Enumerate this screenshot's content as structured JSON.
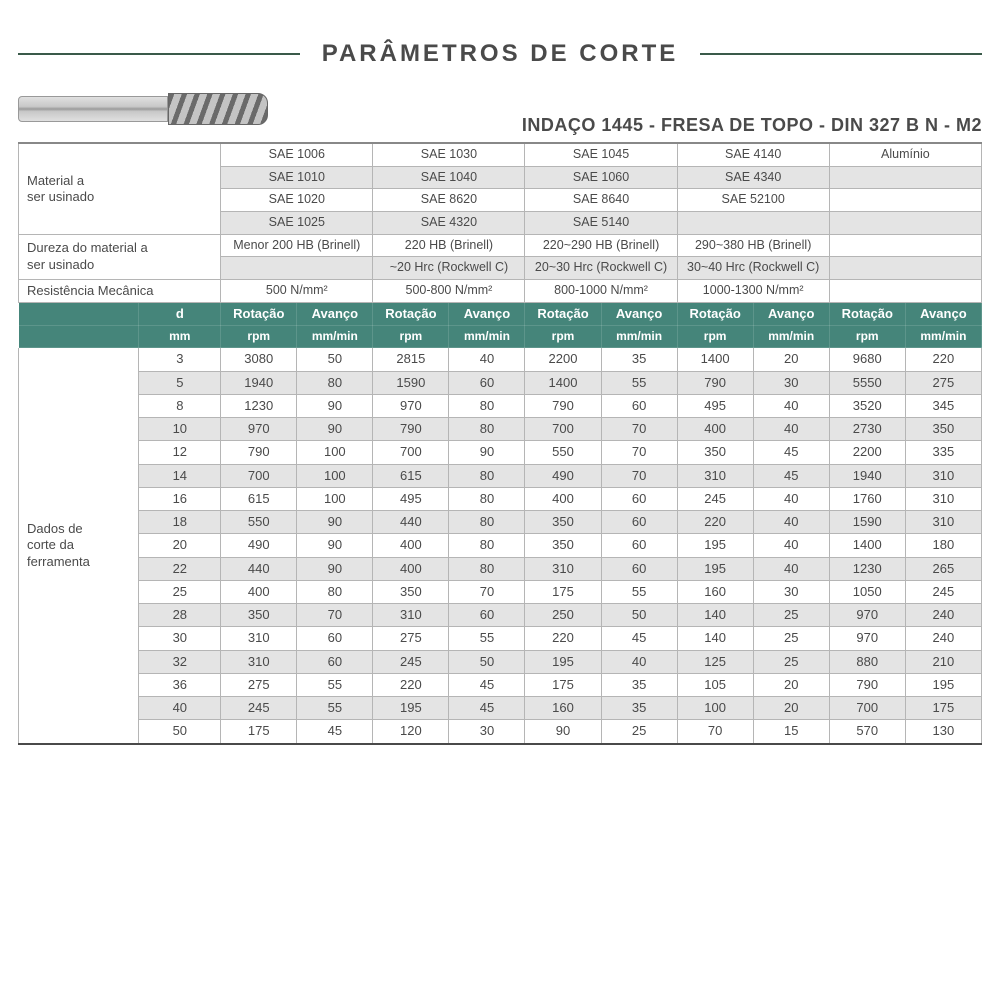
{
  "title": "PARÂMETROS DE CORTE",
  "subtitle": "INDAÇO 1445 - FRESA DE TOPO - DIN 327 B N - M2",
  "labels": {
    "material": "Material a\nser usinado",
    "hardness": "Dureza do material a\nser usinado",
    "resistance": "Resistência Mecânica",
    "tool_data": "Dados de\ncorte da\nferramenta",
    "d": "d",
    "mm": "mm",
    "rot": "Rotação",
    "rpm": "rpm",
    "adv": "Avanço",
    "mmmin": "mm/min"
  },
  "material_groups": [
    {
      "name": "g1",
      "rows": [
        "SAE 1006",
        "SAE 1010",
        "SAE 1020",
        "SAE 1025"
      ]
    },
    {
      "name": "g2",
      "rows": [
        "SAE 1030",
        "SAE 1040",
        "SAE 8620",
        "SAE 4320"
      ]
    },
    {
      "name": "g3",
      "rows": [
        "SAE 1045",
        "SAE 1060",
        "SAE 8640",
        "SAE 5140"
      ]
    },
    {
      "name": "g4",
      "rows": [
        "SAE 4140",
        "SAE 4340",
        "SAE 52100",
        ""
      ]
    },
    {
      "name": "g5",
      "rows": [
        "Alumínio",
        "",
        "",
        ""
      ]
    }
  ],
  "hardness_rows": [
    [
      "Menor 200 HB (Brinell)",
      "220 HB (Brinell)",
      "220~290 HB (Brinell)",
      "290~380 HB (Brinell)",
      ""
    ],
    [
      "",
      "~20 Hrc (Rockwell C)",
      "20~30 Hrc (Rockwell C)",
      "30~40 Hrc (Rockwell C)",
      ""
    ]
  ],
  "resistance_row": [
    "500 N/mm²",
    "500-800 N/mm²",
    "800-1000 N/mm²",
    "1000-1300 N/mm²",
    ""
  ],
  "diameters": [
    3,
    5,
    8,
    10,
    12,
    14,
    16,
    18,
    20,
    22,
    25,
    28,
    30,
    32,
    36,
    40,
    50
  ],
  "data_rows": [
    [
      3080,
      50,
      2815,
      40,
      2200,
      35,
      1400,
      20,
      9680,
      220
    ],
    [
      1940,
      80,
      1590,
      60,
      1400,
      55,
      790,
      30,
      5550,
      275
    ],
    [
      1230,
      90,
      970,
      80,
      790,
      60,
      495,
      40,
      3520,
      345
    ],
    [
      970,
      90,
      790,
      80,
      700,
      70,
      400,
      40,
      2730,
      350
    ],
    [
      790,
      100,
      700,
      90,
      550,
      70,
      350,
      45,
      2200,
      335
    ],
    [
      700,
      100,
      615,
      80,
      490,
      70,
      310,
      45,
      1940,
      310
    ],
    [
      615,
      100,
      495,
      80,
      400,
      60,
      245,
      40,
      1760,
      310
    ],
    [
      550,
      90,
      440,
      80,
      350,
      60,
      220,
      40,
      1590,
      310
    ],
    [
      490,
      90,
      400,
      80,
      350,
      60,
      195,
      40,
      1400,
      180
    ],
    [
      440,
      90,
      400,
      80,
      310,
      60,
      195,
      40,
      1230,
      265
    ],
    [
      400,
      80,
      350,
      70,
      175,
      55,
      160,
      30,
      1050,
      245
    ],
    [
      350,
      70,
      310,
      60,
      250,
      50,
      140,
      25,
      970,
      240
    ],
    [
      310,
      60,
      275,
      55,
      220,
      45,
      140,
      25,
      970,
      240
    ],
    [
      310,
      60,
      245,
      50,
      195,
      40,
      125,
      25,
      880,
      210
    ],
    [
      275,
      55,
      220,
      45,
      175,
      35,
      105,
      20,
      790,
      195
    ],
    [
      245,
      55,
      195,
      45,
      160,
      35,
      100,
      20,
      700,
      175
    ],
    [
      175,
      45,
      120,
      30,
      90,
      25,
      70,
      15,
      570,
      130
    ]
  ],
  "style": {
    "teal": "#45857a",
    "shade": "#e4e4e4",
    "border": "#b5b5b5",
    "text": "#4a4a4a",
    "rule": "#3a5a4a",
    "title_fontsize": 24,
    "subtitle_fontsize": 18,
    "table_fontsize": 13,
    "col_widths_pct": {
      "label": 12.5,
      "d": 8.5,
      "pair_each": 7.9
    }
  }
}
